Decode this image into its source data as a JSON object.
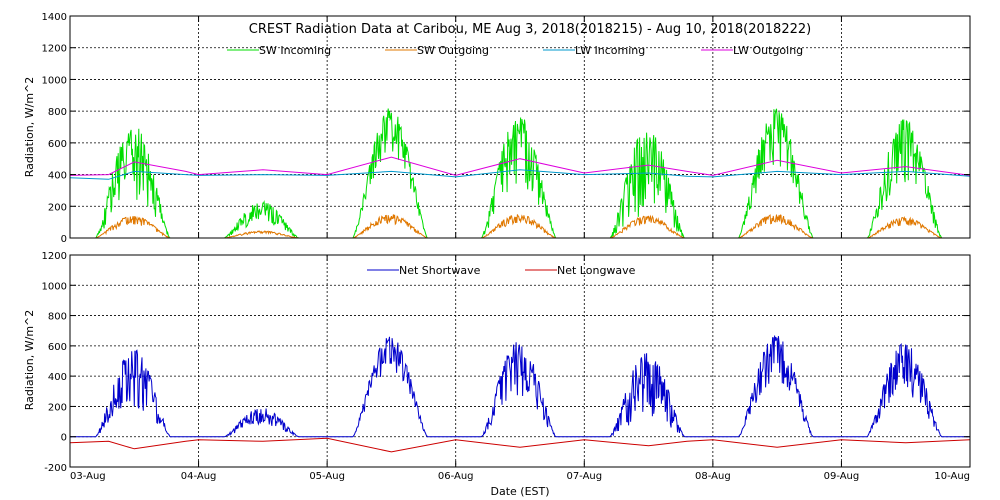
{
  "chart_data": [
    {
      "type": "line",
      "title": "CREST Radiation Data at Caribou, ME   Aug  3, 2018(2018215) - Aug 10, 2018(2018222)",
      "ylabel": "Radiation, W/m^2",
      "ylim": [
        0,
        1400
      ],
      "yticks": [
        0,
        200,
        400,
        600,
        800,
        1000,
        1200,
        1400
      ],
      "xlim": [
        0,
        7
      ],
      "grid": true,
      "legend_position": "top-center",
      "series": [
        {
          "name": "SW Incoming",
          "color": "#00dd00",
          "peaks": [
            720,
            230,
            820,
            780,
            700,
            820,
            750
          ],
          "jitter": [
            0.7,
            0.6,
            0.35,
            0.6,
            0.8,
            0.45,
            0.55
          ]
        },
        {
          "name": "SW Outgoing",
          "color": "#e07800",
          "peaks": [
            140,
            45,
            150,
            150,
            140,
            150,
            130
          ]
        },
        {
          "name": "LW Incoming",
          "color": "#0099cc",
          "x": [
            0,
            0.3,
            0.5,
            0.9,
            1.0,
            1.5,
            2.0,
            2.5,
            3.0,
            3.5,
            4.0,
            4.5,
            4.8,
            5.0,
            5.5,
            6.0,
            6.5,
            7.0
          ],
          "y": [
            380,
            370,
            420,
            400,
            395,
            400,
            395,
            420,
            385,
            430,
            400,
            410,
            390,
            385,
            420,
            400,
            420,
            390
          ]
        },
        {
          "name": "LW Outgoing",
          "color": "#dd00dd",
          "x": [
            0,
            0.3,
            0.5,
            0.9,
            1.0,
            1.5,
            2.0,
            2.5,
            3.0,
            3.5,
            4.0,
            4.5,
            4.8,
            5.0,
            5.5,
            6.0,
            6.5,
            7.0
          ],
          "y": [
            395,
            400,
            480,
            420,
            400,
            430,
            400,
            510,
            395,
            500,
            410,
            460,
            420,
            395,
            490,
            410,
            450,
            395
          ]
        }
      ]
    },
    {
      "type": "line",
      "xlabel": "Date (EST)",
      "ylabel": "Radiation, W/m^2",
      "ylim": [
        -200,
        1200
      ],
      "yticks": [
        -200,
        0,
        200,
        400,
        600,
        800,
        1000,
        1200
      ],
      "xlim": [
        0,
        7
      ],
      "x_tick_labels": [
        "03-Aug",
        "04-Aug",
        "05-Aug",
        "06-Aug",
        "07-Aug",
        "08-Aug",
        "09-Aug",
        "10-Aug"
      ],
      "grid": true,
      "legend_position": "top-center",
      "series": [
        {
          "name": "Net Shortwave",
          "color": "#0000cc",
          "peaks": [
            580,
            190,
            670,
            630,
            560,
            670,
            620
          ],
          "jitter": [
            0.7,
            0.6,
            0.35,
            0.6,
            0.8,
            0.45,
            0.55
          ]
        },
        {
          "name": "Net Longwave",
          "color": "#cc0000",
          "x": [
            0,
            0.3,
            0.5,
            0.9,
            1.0,
            1.5,
            2.0,
            2.5,
            3.0,
            3.5,
            4.0,
            4.5,
            4.8,
            5.0,
            5.5,
            6.0,
            6.5,
            7.0
          ],
          "y": [
            -40,
            -30,
            -80,
            -30,
            -20,
            -30,
            -10,
            -100,
            -20,
            -70,
            -20,
            -60,
            -30,
            -20,
            -70,
            -20,
            -40,
            -20
          ]
        }
      ]
    }
  ]
}
